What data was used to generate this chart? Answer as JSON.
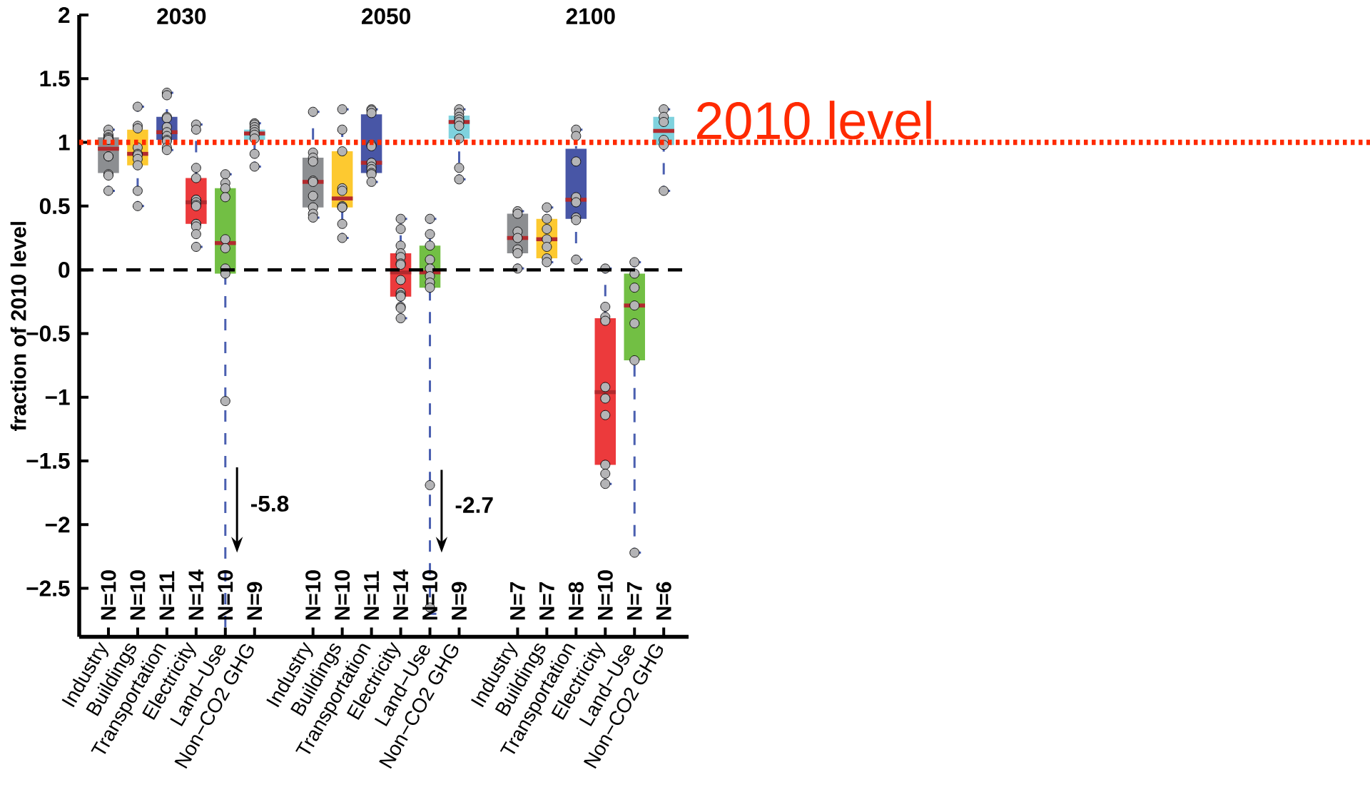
{
  "chart_data": {
    "type": "box",
    "ylabel": "fraction of 2010 level",
    "categories": [
      "Industry",
      "Buildings",
      "Transportation",
      "Electricity",
      "Land−Use",
      "Non−CO2 GHG",
      null,
      "Industry",
      "Buildings",
      "Transportation",
      "Electricity",
      "Land−Use",
      "Non−CO2 GHG",
      null,
      "Industry",
      "Buildings",
      "Transportation",
      "Electricity",
      "Land−Use",
      "Non−CO2 GHG"
    ],
    "colors": [
      "#8c8e91",
      "#fdc930",
      "#4856a6",
      "#ec3a3c",
      "#72bf44",
      "#7fd2de",
      null,
      "#8c8e91",
      "#fdc930",
      "#4856a6",
      "#ec3a3c",
      "#72bf44",
      "#7fd2de",
      null,
      "#8c8e91",
      "#fdc930",
      "#4856a6",
      "#ec3a3c",
      "#72bf44",
      "#7fd2de"
    ],
    "boxes": [
      {
        "low": 0.62,
        "q1": 0.76,
        "median": 0.95,
        "q3": 1.04,
        "high": 1.1,
        "outliers": [
          1.1,
          1.06,
          1.04,
          1.03,
          1.02,
          0.89,
          0.89,
          0.75,
          0.74,
          0.62
        ]
      },
      {
        "low": 0.5,
        "q1": 0.82,
        "median": 0.91,
        "q3": 1.1,
        "high": 1.28,
        "outliers": [
          1.28,
          1.13,
          1.11,
          0.96,
          0.91,
          0.9,
          0.87,
          0.82,
          0.62,
          0.5
        ]
      },
      {
        "low": 0.94,
        "q1": 1.02,
        "median": 1.08,
        "q3": 1.2,
        "high": 1.39,
        "outliers": [
          1.39,
          1.37,
          1.2,
          1.19,
          1.12,
          1.08,
          1.05,
          1.02,
          1.01,
          0.96,
          0.94
        ]
      },
      {
        "low": 0.18,
        "q1": 0.36,
        "median": 0.53,
        "q3": 0.72,
        "high": 1.14,
        "outliers": [
          1.14,
          1.1,
          0.8,
          0.72,
          0.55,
          0.55,
          0.53,
          0.51,
          0.5,
          0.36,
          0.36,
          0.34,
          0.28,
          0.18
        ]
      },
      {
        "low": -5.8,
        "q1": -0.03,
        "median": 0.21,
        "q3": 0.64,
        "high": 0.75,
        "outliers": [
          0.75,
          0.68,
          0.64,
          0.57,
          0.24,
          0.17,
          0.01,
          -0.03,
          -1.03
        ]
      },
      {
        "low": 0.81,
        "q1": 1.02,
        "median": 1.07,
        "q3": 1.1,
        "high": 1.15,
        "outliers": [
          1.15,
          1.14,
          1.12,
          1.1,
          1.08,
          1.06,
          1.03,
          0.91,
          0.81
        ]
      },
      null,
      {
        "low": 0.41,
        "q1": 0.49,
        "median": 0.69,
        "q3": 0.88,
        "high": 1.24,
        "outliers": [
          1.24,
          0.92,
          0.88,
          0.85,
          0.7,
          0.69,
          0.58,
          0.49,
          0.44,
          0.41
        ]
      },
      {
        "low": 0.25,
        "q1": 0.49,
        "median": 0.56,
        "q3": 0.93,
        "high": 1.26,
        "outliers": [
          1.26,
          1.1,
          0.93,
          0.64,
          0.62,
          0.5,
          0.49,
          0.49,
          0.36,
          0.25
        ]
      },
      {
        "low": 0.69,
        "q1": 0.76,
        "median": 0.84,
        "q3": 1.22,
        "high": 1.26,
        "outliers": [
          1.26,
          1.25,
          1.23,
          0.98,
          0.97,
          0.84,
          0.81,
          0.79,
          0.76,
          0.75,
          0.69
        ]
      },
      {
        "low": -0.38,
        "q1": -0.21,
        "median": -0.02,
        "q3": 0.13,
        "high": 0.4,
        "outliers": [
          0.4,
          0.32,
          0.19,
          0.13,
          0.1,
          0.05,
          0.04,
          -0.08,
          -0.18,
          -0.2,
          -0.21,
          -0.29,
          -0.3,
          -0.38
        ]
      },
      {
        "low": -2.7,
        "q1": -0.14,
        "median": -0.02,
        "q3": 0.19,
        "high": 0.4,
        "outliers": [
          0.4,
          0.28,
          0.19,
          0.08,
          0.01,
          -0.05,
          -0.1,
          -0.14,
          -1.69,
          -2.65
        ]
      },
      {
        "low": 0.71,
        "q1": 1.03,
        "median": 1.16,
        "q3": 1.21,
        "high": 1.26,
        "outliers": [
          1.26,
          1.23,
          1.2,
          1.18,
          1.16,
          1.13,
          1.03,
          0.8,
          0.71
        ]
      },
      null,
      {
        "low": 0.01,
        "q1": 0.13,
        "median": 0.25,
        "q3": 0.44,
        "high": 0.46,
        "outliers": [
          0.46,
          0.44,
          0.3,
          0.25,
          0.16,
          0.13,
          0.01
        ]
      },
      {
        "low": 0.06,
        "q1": 0.09,
        "median": 0.24,
        "q3": 0.4,
        "high": 0.49,
        "outliers": [
          0.49,
          0.4,
          0.32,
          0.24,
          0.18,
          0.09,
          0.06
        ]
      },
      {
        "low": 0.08,
        "q1": 0.4,
        "median": 0.55,
        "q3": 0.95,
        "high": 1.1,
        "outliers": [
          1.1,
          1.05,
          0.85,
          0.57,
          0.53,
          0.41,
          0.39,
          0.08
        ]
      },
      {
        "low": -1.68,
        "q1": -1.53,
        "median": -0.96,
        "q3": -0.38,
        "high": 0.01,
        "outliers": [
          0.01,
          -0.29,
          -0.37,
          -0.4,
          -0.92,
          -1.01,
          -1.14,
          -1.53,
          -1.6,
          -1.68
        ]
      },
      {
        "low": -2.22,
        "q1": -0.71,
        "median": -0.28,
        "q3": -0.03,
        "high": 0.06,
        "outliers": [
          0.06,
          -0.03,
          -0.14,
          -0.28,
          -0.42,
          -0.71,
          -2.22
        ]
      },
      {
        "low": 0.62,
        "q1": 0.98,
        "median": 1.09,
        "q3": 1.2,
        "high": 1.26,
        "outliers": [
          1.26,
          1.2,
          1.16,
          1.02,
          0.98,
          0.62
        ]
      }
    ],
    "value_labels": [
      "N=10",
      "N=10",
      "N=11",
      "N=14",
      "N=10",
      "N=9",
      null,
      "N=10",
      "N=10",
      "N=11",
      "N=14",
      "N=10",
      "N=9",
      null,
      "N=7",
      "N=7",
      "N=8",
      "N=10",
      "N=7",
      "N=6"
    ],
    "ylim": [
      -2.88,
      2
    ],
    "yticks": [
      {
        "value": -2.5,
        "label": "−2.5"
      },
      {
        "value": -2,
        "label": "−2"
      },
      {
        "value": -1.5,
        "label": "−1.5"
      },
      {
        "value": -1,
        "label": "−1"
      },
      {
        "value": -0.5,
        "label": "−0.5"
      },
      0,
      0.5,
      1,
      1.5,
      2
    ],
    "ref_lines": [
      {
        "axis": "y",
        "value": 1,
        "label": "2010 level",
        "color": "#ff2a00",
        "line_style": "dotted"
      },
      {
        "axis": "y",
        "value": 0,
        "color": "#000000",
        "line_style": "dashed"
      }
    ],
    "annotations": [
      "2030",
      "2050",
      "2100",
      "-5.8",
      "-2.7"
    ]
  }
}
